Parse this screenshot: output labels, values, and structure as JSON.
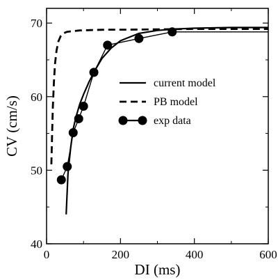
{
  "chart_data": {
    "type": "line",
    "xlabel": "DI (ms)",
    "ylabel": "CV (cm/s)",
    "xlim": [
      0,
      600
    ],
    "ylim": [
      40,
      72
    ],
    "x_ticks": [
      0,
      200,
      400,
      600
    ],
    "y_ticks": [
      40,
      50,
      60,
      70
    ],
    "legend_position": "center-right",
    "grid": false,
    "series": [
      {
        "name": "current model",
        "style": "solid",
        "color": "#000000",
        "x": [
          53,
          58,
          65,
          72,
          80,
          90,
          100,
          115,
          130,
          150,
          175,
          200,
          250,
          300,
          350,
          400,
          450,
          500,
          600
        ],
        "y": [
          44.0,
          49.5,
          53.0,
          55.6,
          57.3,
          59.0,
          60.3,
          62.0,
          63.5,
          65.2,
          66.6,
          67.6,
          68.6,
          69.0,
          69.2,
          69.3,
          69.35,
          69.4,
          69.4
        ]
      },
      {
        "name": "PB model",
        "style": "dashed",
        "color": "#000000",
        "x": [
          13,
          15,
          17,
          20,
          23,
          27,
          32,
          38,
          45,
          55,
          70,
          90,
          120,
          160,
          220,
          300,
          400,
          500,
          600
        ],
        "y": [
          50.8,
          55.0,
          58.5,
          62.0,
          64.5,
          66.3,
          67.5,
          68.2,
          68.6,
          68.8,
          68.9,
          69.0,
          69.05,
          69.1,
          69.1,
          69.15,
          69.2,
          69.2,
          69.2
        ]
      },
      {
        "name": "exp data",
        "style": "solid-markers",
        "color": "#000000",
        "x": [
          40,
          56,
          72,
          87,
          100,
          128,
          165,
          250,
          340,
          600
        ],
        "y": [
          48.7,
          50.5,
          55.1,
          57.0,
          58.7,
          63.3,
          67.0,
          67.9,
          68.8,
          68.8
        ]
      }
    ]
  }
}
